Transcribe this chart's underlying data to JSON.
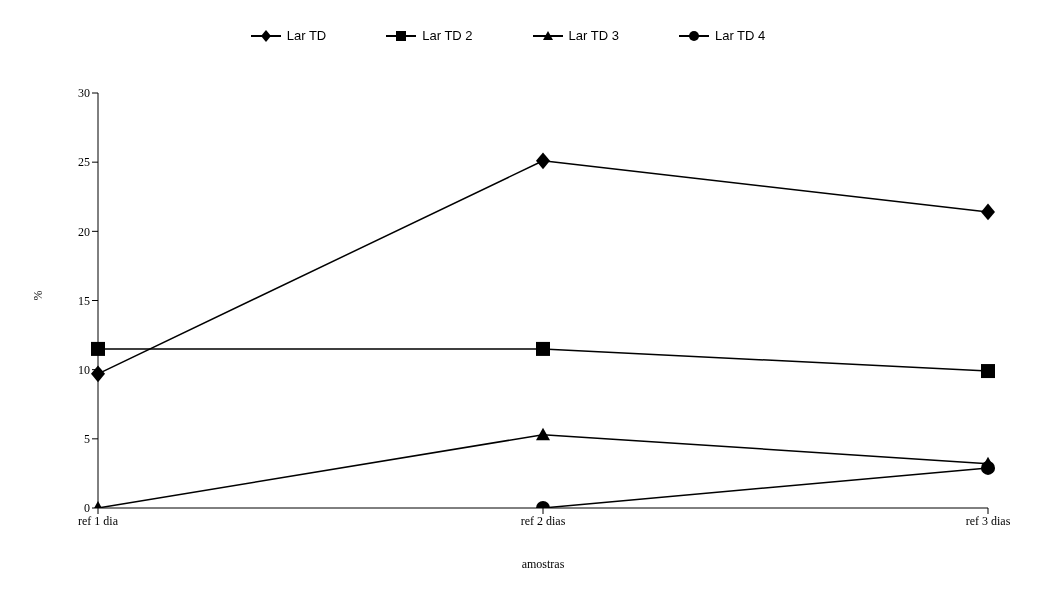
{
  "chart_data": {
    "type": "line",
    "xlabel": "amostras",
    "ylabel": "%",
    "categories": [
      "ref 1 dia",
      "ref 2 dias",
      "ref 3 dias"
    ],
    "series": [
      {
        "name": "Lar TD",
        "color": "#000000",
        "marker": "diamond",
        "values": [
          9.7,
          25.1,
          21.4
        ]
      },
      {
        "name": "Lar TD 2",
        "color": "#000000",
        "marker": "square",
        "values": [
          11.5,
          11.5,
          9.9
        ]
      },
      {
        "name": "Lar TD 3",
        "color": "#000000",
        "marker": "triangle",
        "values": [
          0,
          5.3,
          3.2
        ]
      },
      {
        "name": "Lar TD 4",
        "color": "#000000",
        "marker": "circle",
        "values": [
          null,
          0,
          2.9
        ]
      }
    ],
    "ylim": [
      0,
      30
    ],
    "yticks": [
      0,
      5,
      10,
      15,
      20,
      25,
      30
    ],
    "grid": false,
    "legend": "top",
    "line_style": "solid"
  }
}
